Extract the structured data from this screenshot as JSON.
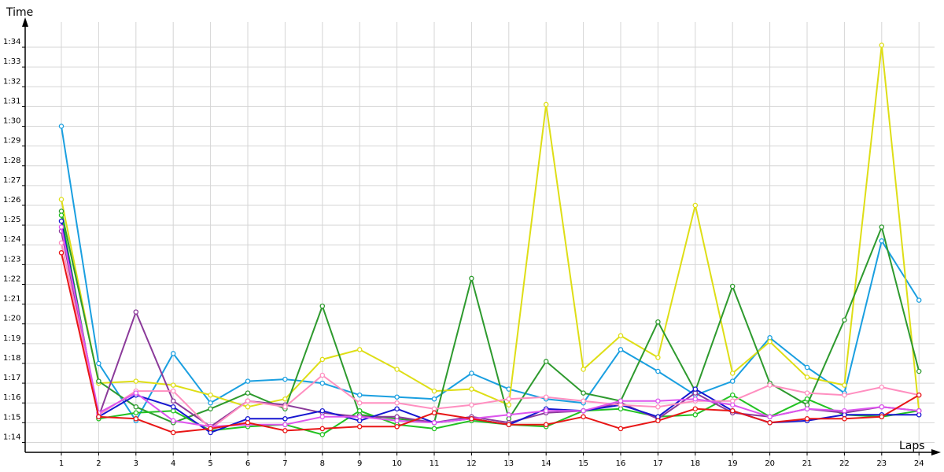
{
  "chart_data": {
    "type": "line",
    "xlabel": "Laps",
    "ylabel": "Time",
    "x": [
      1,
      2,
      3,
      4,
      5,
      6,
      7,
      8,
      9,
      10,
      11,
      12,
      13,
      14,
      15,
      16,
      17,
      18,
      19,
      20,
      21,
      22,
      23,
      24
    ],
    "xlim": [
      0,
      24
    ],
    "ylim": [
      73.5,
      95.2
    ],
    "y_ticks": [
      74,
      75,
      76,
      77,
      78,
      79,
      80,
      81,
      82,
      83,
      84,
      85,
      86,
      87,
      88,
      89,
      90,
      91,
      92,
      93,
      94
    ],
    "y_tick_labels": [
      "1:14",
      "1:15",
      "1:16",
      "1:17",
      "1:18",
      "1:19",
      "1:20",
      "1:21",
      "1:22",
      "1:23",
      "1:24",
      "1:25",
      "1:26",
      "1:27",
      "1:28",
      "1:29",
      "1:30",
      "1:31",
      "1:32",
      "1:33",
      "1:34"
    ],
    "grid": true,
    "legend": "none",
    "series": [
      {
        "color": "#1a9fe0",
        "values": [
          90.0,
          78.0,
          75.1,
          78.5,
          76.0,
          77.1,
          77.2,
          77.0,
          76.4,
          76.3,
          76.2,
          77.5,
          76.7,
          76.2,
          76.0,
          78.7,
          77.6,
          76.4,
          77.1,
          79.3,
          77.8,
          76.5,
          84.2,
          81.2
        ]
      },
      {
        "color": "#dede16",
        "values": [
          86.3,
          77.0,
          77.1,
          76.9,
          76.4,
          75.8,
          76.2,
          78.2,
          78.7,
          77.7,
          76.6,
          76.7,
          75.9,
          91.1,
          77.7,
          79.4,
          78.3,
          86.0,
          77.5,
          79.1,
          77.3,
          76.9,
          94.1,
          75.6
        ]
      },
      {
        "color": "#2e9a2e",
        "values": [
          85.7,
          77.1,
          75.8,
          75.0,
          75.7,
          76.5,
          75.7,
          80.9,
          75.4,
          75.2,
          75.0,
          82.3,
          75.2,
          78.1,
          76.5,
          76.1,
          80.1,
          76.6,
          81.9,
          77.0,
          75.9,
          80.2,
          84.9,
          77.6
        ]
      },
      {
        "color": "#22c222",
        "values": [
          85.5,
          75.2,
          75.5,
          75.6,
          74.6,
          74.8,
          74.9,
          74.4,
          75.6,
          74.9,
          74.7,
          75.1,
          74.9,
          74.8,
          75.6,
          75.7,
          75.3,
          75.4,
          76.4,
          75.3,
          76.2,
          75.4,
          75.3,
          75.6
        ]
      },
      {
        "color": "#8b3a9a",
        "values": [
          84.7,
          75.3,
          80.6,
          76.1,
          74.8,
          76.1,
          75.9,
          75.5,
          75.3,
          75.3,
          75.0,
          75.3,
          75.0,
          75.5,
          75.6,
          76.0,
          75.2,
          76.5,
          75.5,
          75.3,
          75.7,
          75.5,
          75.8,
          75.6
        ]
      },
      {
        "color": "#1616d0",
        "values": [
          85.2,
          75.3,
          76.4,
          75.8,
          74.5,
          75.2,
          75.2,
          75.6,
          75.1,
          75.7,
          75.0,
          75.2,
          74.9,
          75.7,
          75.6,
          75.9,
          75.3,
          76.7,
          75.6,
          75.0,
          75.1,
          75.4,
          75.4,
          75.4
        ]
      },
      {
        "color": "#ff8fc0",
        "values": [
          84.1,
          75.4,
          76.6,
          76.6,
          74.7,
          76.1,
          75.8,
          77.4,
          76.0,
          76.0,
          75.7,
          75.9,
          76.2,
          76.3,
          76.1,
          75.9,
          75.8,
          76.1,
          76.1,
          76.9,
          76.5,
          76.4,
          76.8,
          76.4
        ]
      },
      {
        "color": "#dd55ee",
        "values": [
          84.9,
          75.5,
          76.5,
          75.1,
          74.8,
          74.9,
          74.9,
          75.3,
          75.3,
          75.1,
          75.0,
          75.2,
          75.4,
          75.6,
          75.6,
          76.1,
          76.1,
          76.2,
          75.9,
          75.3,
          75.7,
          75.6,
          75.8,
          75.6
        ]
      },
      {
        "color": "#e81616",
        "values": [
          83.6,
          75.3,
          75.2,
          74.5,
          74.7,
          75.0,
          74.6,
          74.7,
          74.8,
          74.8,
          75.5,
          75.2,
          74.9,
          74.9,
          75.3,
          74.7,
          75.1,
          75.7,
          75.6,
          75.0,
          75.2,
          75.2,
          75.3,
          76.4
        ]
      }
    ]
  }
}
